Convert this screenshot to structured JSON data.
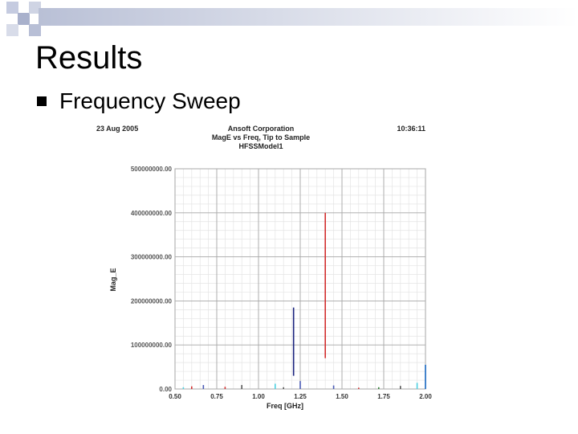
{
  "slide": {
    "title": "Results",
    "bullet": "Frequency Sweep"
  },
  "chart_data": {
    "type": "line",
    "date": "23 Aug 2005",
    "company": "Ansoft Corporation",
    "title": "MagE vs Freq, Tip to Sample",
    "subtitle": "HFSSModel1",
    "time": "10:36:11",
    "xlabel": "Freq [GHz]",
    "ylabel": "Mag_E",
    "xlim": [
      0.5,
      2.0
    ],
    "ylim": [
      0,
      500000000
    ],
    "x_ticks": [
      0.5,
      0.75,
      1.0,
      1.25,
      1.5,
      1.75,
      2.0
    ],
    "x_tick_labels": [
      "0.50",
      "0.75",
      "1.00",
      "1.25",
      "1.50",
      "1.75",
      "2.00"
    ],
    "y_ticks": [
      0,
      100000000,
      200000000,
      300000000,
      400000000,
      500000000
    ],
    "y_tick_labels": [
      "0.00",
      "100000000.00",
      "200000000.00",
      "300000000.00",
      "400000000.00",
      "500000000.00"
    ],
    "grid": true,
    "series": [
      {
        "color": "#1a237e",
        "segments": [
          [
            1.21,
            30000000,
            1.21,
            185000000
          ]
        ]
      },
      {
        "color": "#d32f2f",
        "segments": [
          [
            1.4,
            70000000,
            1.4,
            400000000
          ]
        ]
      },
      {
        "color": "#d32f2f",
        "segments": [
          [
            0.6,
            0,
            0.6,
            6000000
          ],
          [
            0.8,
            0,
            0.8,
            5000000
          ],
          [
            1.6,
            0,
            1.6,
            3000000
          ]
        ]
      },
      {
        "color": "#4a5bb5",
        "segments": [
          [
            0.67,
            0,
            0.67,
            9000000
          ],
          [
            1.25,
            0,
            1.25,
            18000000
          ],
          [
            1.45,
            0,
            1.45,
            8000000
          ]
        ]
      },
      {
        "color": "#555555",
        "segments": [
          [
            0.9,
            0,
            0.9,
            9000000
          ],
          [
            1.85,
            0,
            1.85,
            7000000
          ],
          [
            1.15,
            0,
            1.15,
            4000000
          ]
        ]
      },
      {
        "color": "#4dd0e1",
        "segments": [
          [
            1.1,
            0,
            1.1,
            12000000
          ],
          [
            1.95,
            0,
            1.95,
            14000000
          ],
          [
            0.55,
            0,
            0.55,
            4000000
          ]
        ]
      },
      {
        "color": "#2e7d32",
        "segments": [
          [
            1.72,
            0,
            1.72,
            4000000
          ]
        ]
      },
      {
        "color": "#1565c0",
        "segments": [
          [
            2.0,
            0,
            2.0,
            55000000
          ]
        ]
      }
    ]
  },
  "colors": {
    "checker": "#bfc6d8",
    "checker_dark": "#8e97b3",
    "band": "#dde1ea"
  }
}
